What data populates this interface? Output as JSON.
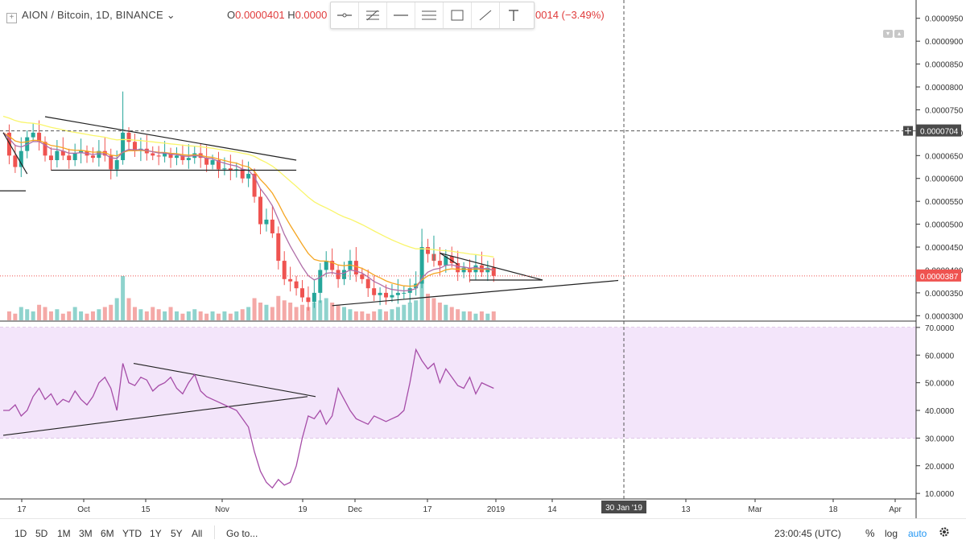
{
  "header": {
    "symbol": "AION / Bitcoin, 1D, BINANCE",
    "dropdown_glyph": "⌄",
    "ohlc_open_label": "O",
    "ohlc_open_value": "0.0000401",
    "ohlc_high_label": "H",
    "ohlc_high_value": "0.0000",
    "change_text": "0014 (−3.49%)"
  },
  "toolbar": {
    "tools": [
      "horizontal-ray-icon",
      "fib-retracement-icon",
      "horizontal-line-icon",
      "parallel-channel-icon",
      "rectangle-icon",
      "trend-line-icon",
      "text-icon"
    ]
  },
  "colors": {
    "up": "#26a69a",
    "down": "#ef5350",
    "ema_fast": "#f5a623",
    "ema_mid": "#b06fa8",
    "ma_slow": "#f9f56b",
    "rsi_line": "#a64da8",
    "rsi_band": "#f3e5fa",
    "trend_lines": "#222222",
    "last_price": "#ef5350",
    "crosshair": "#555555"
  },
  "price_axis": {
    "ticks": [
      "0.0000950",
      "0.0000900",
      "0.0000850",
      "0.0000800",
      "0.0000750",
      "0.0000700",
      "0.0000650",
      "0.0000600",
      "0.0000550",
      "0.0000500",
      "0.0000450",
      "0.0000400",
      "0.0000350",
      "0.0000300"
    ],
    "crosshair_label": "0.0000704",
    "last_price_label": "0.0000387"
  },
  "rsi_axis": {
    "ticks": [
      "70.0000",
      "60.0000",
      "50.0000",
      "40.0000",
      "30.0000",
      "20.0000",
      "10.0000"
    ]
  },
  "time_axis": {
    "labels": [
      "17",
      "Oct",
      "15",
      "Nov",
      "19",
      "Dec",
      "17",
      "2019",
      "14",
      "13",
      "Mar",
      "18",
      "Apr"
    ],
    "crosshair_label": "30 Jan '19"
  },
  "bottom_bar": {
    "ranges": [
      "1D",
      "5D",
      "1M",
      "3M",
      "6M",
      "YTD",
      "1Y",
      "5Y",
      "All"
    ],
    "goto": "Go to...",
    "clock": "23:00:45 (UTC)",
    "percent": "%",
    "log": "log",
    "auto": "auto"
  },
  "chart_data": [
    {
      "type": "candlestick",
      "title": "AION / Bitcoin, 1D, BINANCE",
      "ylim": [
        2.9e-05,
        9.9e-05
      ],
      "last_price": 3.87e-05,
      "overlays": [
        "short EMA (orange)",
        "mid EMA (purple)",
        "long MA (yellow)",
        "trend lines",
        "volume histogram"
      ],
      "series": [
        {
          "name": "",
          "close_path": [
            7e-05,
            6.5e-05,
            6.25e-05,
            6.6e-05,
            6.9e-05,
            7e-05,
            6.8e-05,
            6.5e-05,
            6.4e-05,
            6.6e-05,
            6.5e-05,
            6.4e-05,
            6.55e-05,
            6.6e-05,
            6.5e-05,
            6.45e-05,
            6.6e-05,
            6.5e-05,
            6.2e-05,
            6.4e-05,
            7e-05,
            6.8e-05,
            6.6e-05,
            6.65e-05,
            6.55e-05,
            6.5e-05,
            6.48e-05,
            6.55e-05,
            6.45e-05,
            6.5e-05,
            6.4e-05,
            6.45e-05,
            6.55e-05,
            6.45e-05,
            6.3e-05,
            6.4e-05,
            6.2e-05,
            6.22e-05,
            6.18e-05,
            6.2e-05,
            6e-05,
            6.1e-05,
            5.6e-05,
            5e-05,
            5.1e-05,
            4.8e-05,
            4.2e-05,
            3.8e-05,
            3.75e-05,
            3.6e-05,
            3.4e-05,
            3.3e-05,
            3.5e-05,
            4e-05,
            4.2e-05,
            4e-05,
            3.8e-05,
            4e-05,
            4.2e-05,
            3.9e-05,
            3.8e-05,
            3.6e-05,
            3.45e-05,
            3.5e-05,
            3.4e-05,
            3.45e-05,
            3.5e-05,
            3.5e-05,
            3.6e-05,
            3.7e-05,
            4.5e-05,
            4.35e-05,
            4.2e-05,
            4.1e-05,
            4.3e-05,
            4.15e-05,
            3.95e-05,
            4.05e-05,
            3.95e-05,
            4.1e-05,
            3.95e-05,
            4.05e-05,
            3.87e-05
          ]
        }
      ],
      "volume_relative": [
        0.15,
        0.2,
        0.15,
        0.3,
        0.25,
        0.2,
        0.35,
        0.3,
        0.2,
        0.25,
        0.15,
        0.2,
        0.3,
        0.2,
        0.15,
        0.2,
        0.25,
        0.3,
        0.35,
        0.5,
        1.0,
        0.5,
        0.3,
        0.25,
        0.2,
        0.3,
        0.25,
        0.2,
        0.3,
        0.2,
        0.15,
        0.2,
        0.25,
        0.2,
        0.15,
        0.2,
        0.15,
        0.2,
        0.15,
        0.2,
        0.25,
        0.3,
        0.5,
        0.4,
        0.35,
        0.3,
        0.55,
        0.45,
        0.4,
        0.3,
        0.35,
        0.3,
        0.4,
        0.45,
        0.5,
        0.4,
        0.35,
        0.3,
        0.25,
        0.2,
        0.2,
        0.15,
        0.2,
        0.25,
        0.2,
        0.25,
        0.3,
        0.35,
        0.4,
        0.45,
        0.95,
        0.6,
        0.5,
        0.4,
        0.35,
        0.3,
        0.25,
        0.2,
        0.2,
        0.15,
        0.2,
        0.15,
        0.2
      ]
    },
    {
      "type": "line",
      "title": "",
      "ylim": [
        8,
        72
      ],
      "bands": [
        30,
        70
      ],
      "series": [
        {
          "name": "",
          "values": [
            40,
            40,
            42,
            38,
            40,
            45,
            48,
            44,
            46,
            42,
            44,
            43,
            47,
            44,
            42,
            45,
            50,
            52,
            48,
            40,
            57,
            50,
            49,
            52,
            51,
            47,
            49,
            50,
            52,
            48,
            46,
            50,
            53,
            47,
            45,
            44,
            43,
            42,
            41,
            40,
            37,
            34,
            25,
            18,
            14,
            12,
            15,
            13,
            14,
            20,
            30,
            38,
            37,
            40,
            35,
            38,
            48,
            44,
            40,
            37,
            36,
            35,
            38,
            37,
            36,
            37,
            38,
            40,
            50,
            62,
            58,
            55,
            57,
            50,
            55,
            52,
            49,
            48,
            52,
            46,
            50,
            49,
            48
          ]
        }
      ]
    }
  ]
}
